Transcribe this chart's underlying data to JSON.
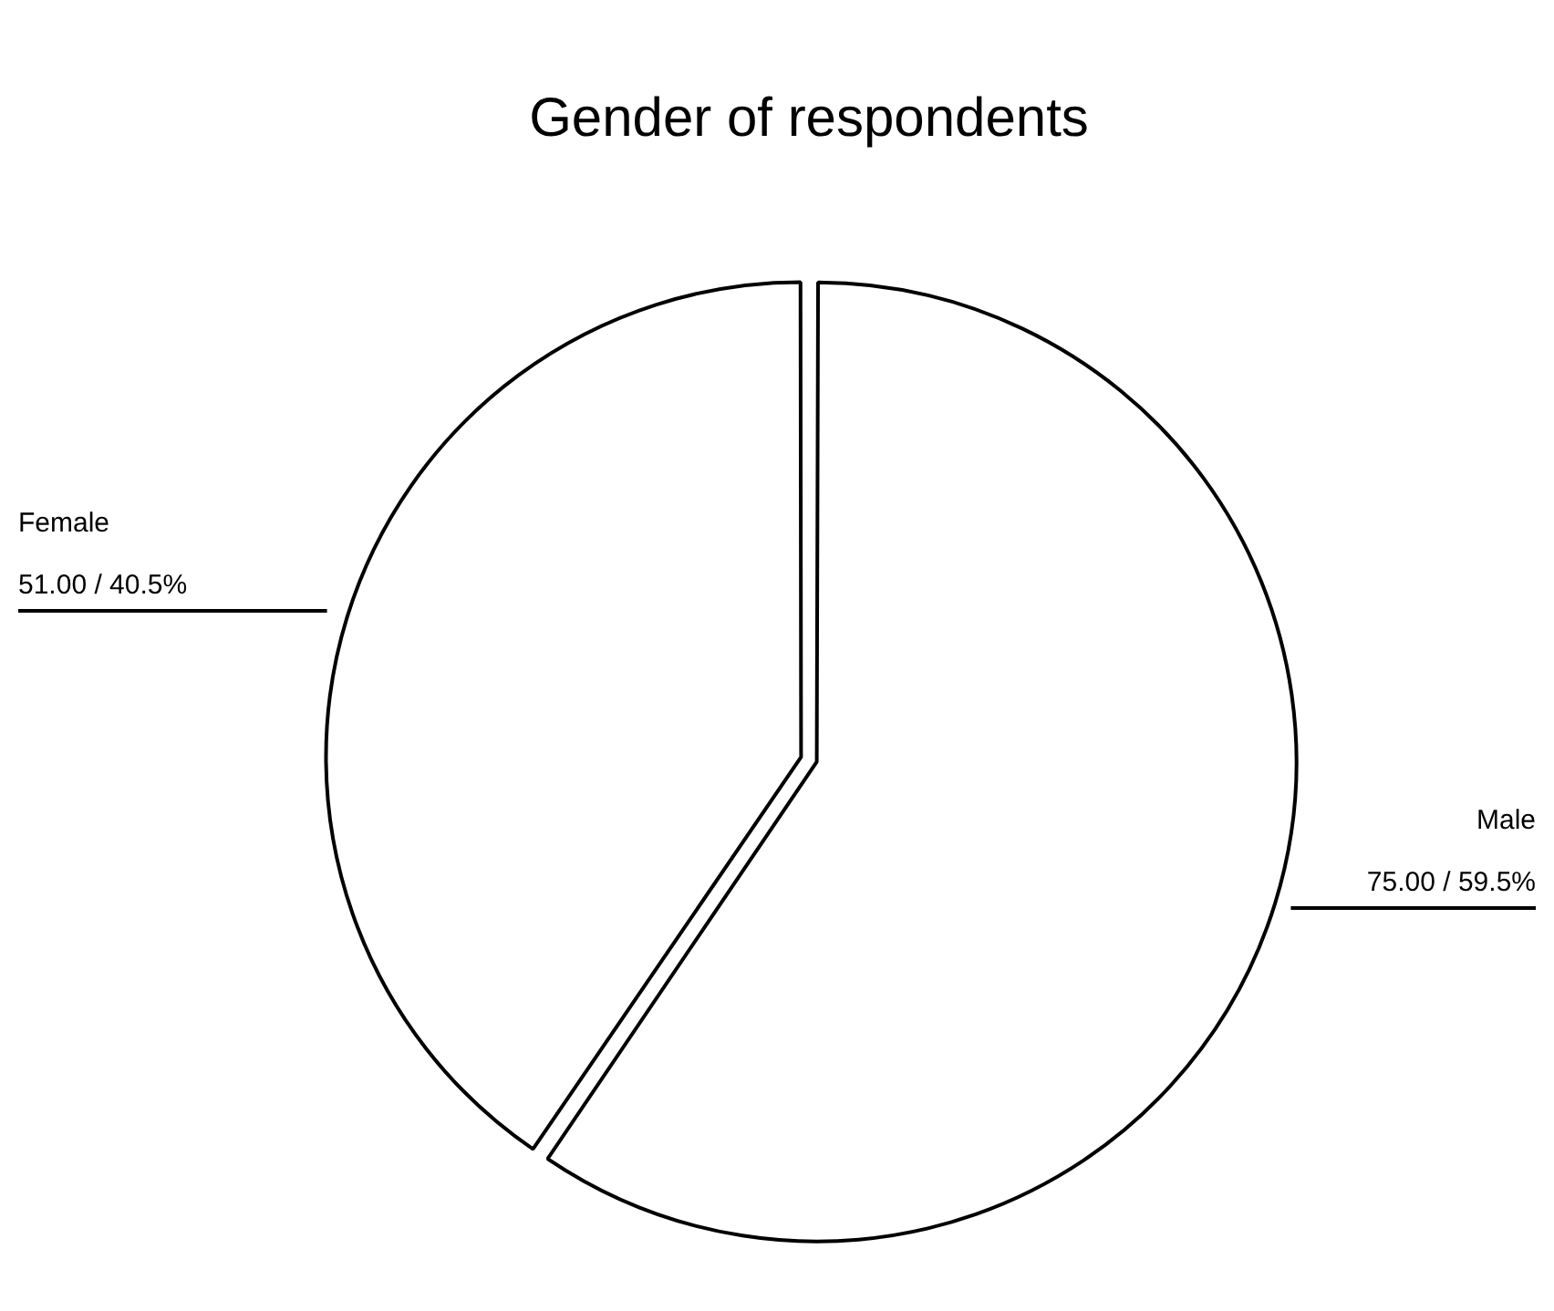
{
  "chart_data": {
    "type": "pie",
    "title": "Gender of respondents",
    "categories": [
      "Male",
      "Female"
    ],
    "values": [
      75,
      51
    ],
    "colors": [
      "#ffffff",
      "#ffffff"
    ],
    "value_labels": [
      "75.00 / 59.5%",
      "51.00 / 40.5%"
    ],
    "legend": false
  }
}
